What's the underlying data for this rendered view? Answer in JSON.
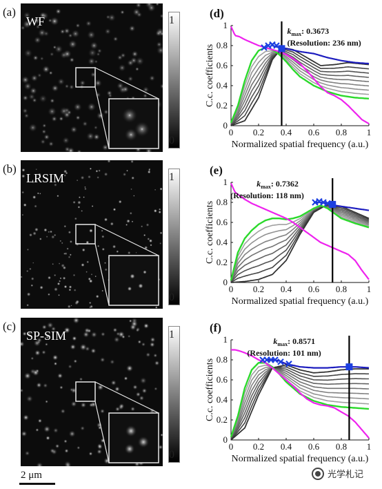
{
  "panels": [
    {
      "id": "a",
      "label": "(a)",
      "name": "WF",
      "seed": 11,
      "style": "blurry",
      "colorbar": {
        "max": "1",
        "min": "0"
      }
    },
    {
      "id": "b",
      "label": "(b)",
      "name": "LRSIM",
      "seed": 29,
      "style": "sharp",
      "colorbar": {
        "max": "1",
        "min": "0"
      }
    },
    {
      "id": "c",
      "label": "(c)",
      "name": "SP-SIM",
      "seed": 47,
      "style": "medium",
      "colorbar": {
        "max": "1",
        "min": "0"
      }
    }
  ],
  "scalebar": {
    "text": "2 μm"
  },
  "watermark": {
    "text": "光学札记"
  },
  "colors": {
    "green": "#2bd92b",
    "magenta": "#ee22ee",
    "blue": "#1d1dbf",
    "gray_dark": "#333333",
    "gray_light": "#b0b0b0",
    "marker": "#1b3fe0",
    "vline": "#000000"
  },
  "chart_data": [
    {
      "panel_label": "(d)",
      "type": "line",
      "xlabel": "Normalized spatial frequency (a.u.)",
      "ylabel": "C.c. coefficients",
      "xlim": [
        0,
        1
      ],
      "ylim": [
        0,
        1
      ],
      "xticks": [
        "0",
        "0.2",
        "0.4",
        "0.6",
        "0.8",
        "1"
      ],
      "yticks": [
        "0",
        "0.2",
        "0.4",
        "0.6",
        "0.8",
        "1"
      ],
      "kmax_label": "k",
      "kmax_sub": "max",
      "kmax_value": ": 0.3673",
      "resolution": "(Resolution: 236 nm)",
      "kmax": 0.3673,
      "series": [
        {
          "role": "magenta",
          "x": [
            0,
            0.03,
            0.06,
            0.1,
            0.15,
            0.2,
            0.25,
            0.3,
            0.35,
            0.4,
            0.45,
            0.5,
            0.55,
            0.6,
            0.65,
            0.7,
            0.75,
            0.8,
            0.85,
            0.9,
            0.95,
            1.0
          ],
          "y": [
            0.99,
            0.9,
            0.89,
            0.86,
            0.83,
            0.8,
            0.78,
            0.76,
            0.74,
            0.71,
            0.67,
            0.62,
            0.55,
            0.47,
            0.39,
            0.33,
            0.3,
            0.26,
            0.2,
            0.13,
            0.06,
            0.02
          ]
        },
        {
          "role": "green",
          "x": [
            0,
            0.05,
            0.1,
            0.15,
            0.2,
            0.25,
            0.3,
            0.35,
            0.4,
            0.45,
            0.5,
            0.6,
            0.7,
            0.8,
            0.9,
            1.0
          ],
          "y": [
            0.03,
            0.2,
            0.45,
            0.65,
            0.75,
            0.78,
            0.76,
            0.71,
            0.64,
            0.56,
            0.49,
            0.4,
            0.34,
            0.3,
            0.28,
            0.27
          ]
        },
        {
          "role": "blue",
          "x": [
            0.3,
            0.35,
            0.4,
            0.5,
            0.6,
            0.7,
            0.8,
            0.9,
            1.0
          ],
          "y": [
            0.8,
            0.78,
            0.77,
            0.74,
            0.72,
            0.68,
            0.65,
            0.63,
            0.62
          ]
        },
        {
          "role": "gray_dark",
          "x": [
            0,
            0.1,
            0.2,
            0.3,
            0.37,
            0.45,
            0.55,
            0.65,
            0.75,
            0.85,
            1.0
          ],
          "y": [
            0.0,
            0.05,
            0.28,
            0.66,
            0.78,
            0.76,
            0.68,
            0.6,
            0.61,
            0.63,
            0.61
          ]
        }
      ],
      "gray_family_count": 7,
      "markers": [
        {
          "x": 0.24,
          "y": 0.78,
          "shape": "x"
        },
        {
          "x": 0.27,
          "y": 0.8,
          "shape": "x"
        },
        {
          "x": 0.3,
          "y": 0.81,
          "shape": "x"
        },
        {
          "x": 0.33,
          "y": 0.8,
          "shape": "x"
        },
        {
          "x": 0.3673,
          "y": 0.77,
          "shape": "square"
        }
      ]
    },
    {
      "panel_label": "(e)",
      "type": "line",
      "xlabel": "Normalized spatial frequency (a.u.)",
      "ylabel": "C.c. coefficients",
      "xlim": [
        0,
        1
      ],
      "ylim": [
        0,
        1
      ],
      "xticks": [
        "0",
        "0.2",
        "0.4",
        "0.6",
        "0.8",
        "1"
      ],
      "yticks": [
        "0",
        "0.2",
        "0.4",
        "0.6",
        "0.8",
        "1"
      ],
      "kmax_label": "k",
      "kmax_sub": "max",
      "kmax_value": ": 0.7362",
      "resolution": "(Resolution: 118 nm)",
      "kmax": 0.7362,
      "series": [
        {
          "role": "magenta",
          "x": [
            0,
            0.03,
            0.06,
            0.1,
            0.15,
            0.2,
            0.25,
            0.3,
            0.35,
            0.4,
            0.45,
            0.5,
            0.55,
            0.6,
            0.65,
            0.7,
            0.75,
            0.8,
            0.85,
            0.9,
            0.95,
            1.0
          ],
          "y": [
            0.99,
            0.9,
            0.87,
            0.83,
            0.79,
            0.76,
            0.73,
            0.7,
            0.67,
            0.64,
            0.6,
            0.55,
            0.5,
            0.45,
            0.4,
            0.37,
            0.34,
            0.31,
            0.28,
            0.22,
            0.12,
            0.03
          ]
        },
        {
          "role": "green",
          "x": [
            0,
            0.05,
            0.1,
            0.15,
            0.2,
            0.25,
            0.3,
            0.35,
            0.4,
            0.45,
            0.5,
            0.55,
            0.6,
            0.65,
            0.7,
            0.75,
            0.8,
            0.9,
            1.0
          ],
          "y": [
            0.02,
            0.3,
            0.44,
            0.52,
            0.58,
            0.62,
            0.64,
            0.64,
            0.63,
            0.64,
            0.66,
            0.7,
            0.74,
            0.77,
            0.74,
            0.69,
            0.64,
            0.59,
            0.55
          ]
        },
        {
          "role": "blue",
          "x": [
            0.6,
            0.65,
            0.7,
            0.75,
            0.8,
            0.9,
            1.0
          ],
          "y": [
            0.8,
            0.8,
            0.79,
            0.77,
            0.76,
            0.74,
            0.72
          ]
        },
        {
          "role": "gray_dark",
          "x": [
            0,
            0.1,
            0.2,
            0.3,
            0.4,
            0.5,
            0.6,
            0.7,
            0.8,
            0.9,
            1.0
          ],
          "y": [
            0.0,
            0.01,
            0.03,
            0.08,
            0.22,
            0.48,
            0.7,
            0.78,
            0.76,
            0.7,
            0.64
          ]
        }
      ],
      "gray_family_count": 7,
      "markers": [
        {
          "x": 0.61,
          "y": 0.8,
          "shape": "x"
        },
        {
          "x": 0.64,
          "y": 0.81,
          "shape": "x"
        },
        {
          "x": 0.67,
          "y": 0.8,
          "shape": "x"
        },
        {
          "x": 0.7,
          "y": 0.79,
          "shape": "x"
        },
        {
          "x": 0.7362,
          "y": 0.78,
          "shape": "square"
        }
      ]
    },
    {
      "panel_label": "(f)",
      "type": "line",
      "xlabel": "Normalized spatial frequency (a.u.)",
      "ylabel": "C.c. coefficients",
      "xlim": [
        0,
        1
      ],
      "ylim": [
        0,
        1
      ],
      "xticks": [
        "0",
        "0.2",
        "0.4",
        "0.6",
        "0.8",
        "1"
      ],
      "yticks": [
        "0",
        "0.2",
        "0.4",
        "0.6",
        "0.8",
        "1"
      ],
      "kmax_label": "k",
      "kmax_sub": "max",
      "kmax_value": ": 0.8571",
      "resolution": "(Resolution: 101 nm)",
      "kmax": 0.8571,
      "series": [
        {
          "role": "magenta",
          "x": [
            0,
            0.03,
            0.06,
            0.1,
            0.15,
            0.2,
            0.25,
            0.3,
            0.35,
            0.4,
            0.45,
            0.5,
            0.55,
            0.6,
            0.65,
            0.7,
            0.75,
            0.8,
            0.85,
            0.9,
            0.95,
            1.0
          ],
          "y": [
            0.9,
            0.9,
            0.89,
            0.87,
            0.84,
            0.8,
            0.77,
            0.72,
            0.66,
            0.6,
            0.54,
            0.47,
            0.41,
            0.37,
            0.35,
            0.34,
            0.32,
            0.28,
            0.24,
            0.18,
            0.1,
            0.02
          ]
        },
        {
          "role": "green",
          "x": [
            0,
            0.05,
            0.1,
            0.15,
            0.2,
            0.25,
            0.3,
            0.35,
            0.4,
            0.5,
            0.6,
            0.7,
            0.8,
            0.9,
            1.0
          ],
          "y": [
            0.03,
            0.24,
            0.52,
            0.7,
            0.77,
            0.77,
            0.73,
            0.66,
            0.58,
            0.46,
            0.39,
            0.35,
            0.33,
            0.32,
            0.31
          ]
        },
        {
          "role": "blue",
          "x": [
            0.25,
            0.3,
            0.35,
            0.4,
            0.5,
            0.6,
            0.7,
            0.8,
            0.86,
            0.9,
            1.0
          ],
          "y": [
            0.8,
            0.8,
            0.79,
            0.76,
            0.73,
            0.72,
            0.72,
            0.73,
            0.73,
            0.73,
            0.72
          ]
        },
        {
          "role": "gray_dark",
          "x": [
            0,
            0.1,
            0.2,
            0.3,
            0.4,
            0.5,
            0.6,
            0.7,
            0.8,
            0.9,
            1.0
          ],
          "y": [
            0.0,
            0.12,
            0.45,
            0.72,
            0.75,
            0.7,
            0.67,
            0.68,
            0.7,
            0.71,
            0.71
          ]
        }
      ],
      "gray_family_count": 7,
      "markers": [
        {
          "x": 0.23,
          "y": 0.8,
          "shape": "x"
        },
        {
          "x": 0.26,
          "y": 0.8,
          "shape": "x"
        },
        {
          "x": 0.29,
          "y": 0.8,
          "shape": "x"
        },
        {
          "x": 0.32,
          "y": 0.8,
          "shape": "x"
        },
        {
          "x": 0.36,
          "y": 0.78,
          "shape": "x"
        },
        {
          "x": 0.42,
          "y": 0.76,
          "shape": "x"
        },
        {
          "x": 0.8571,
          "y": 0.73,
          "shape": "square"
        }
      ]
    }
  ]
}
